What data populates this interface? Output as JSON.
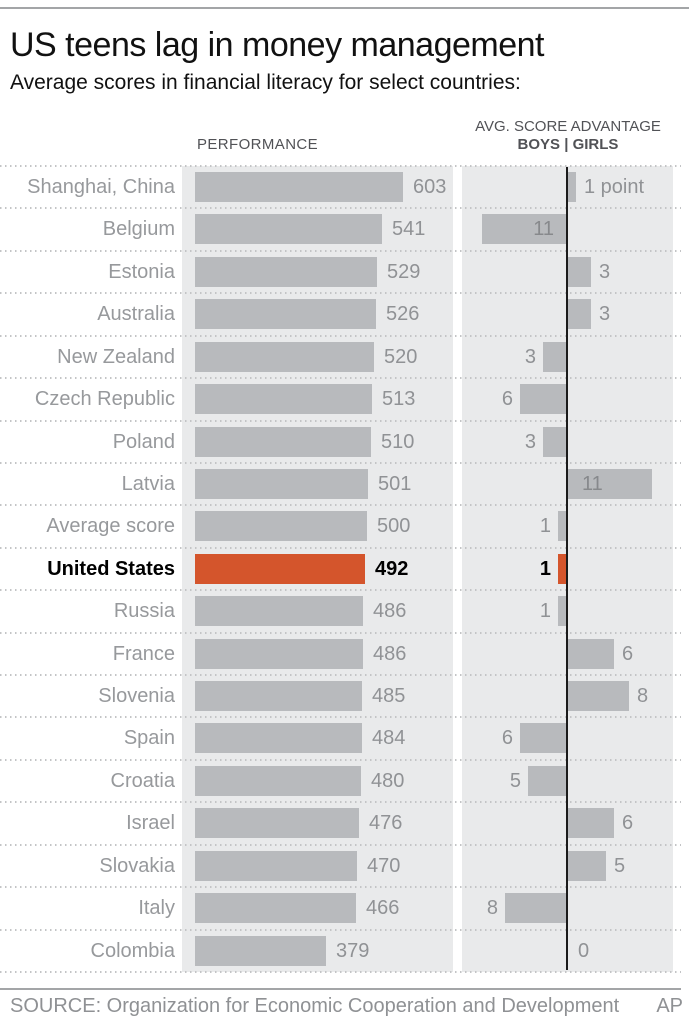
{
  "page": {
    "title": "US teens lag in money management",
    "subtitle": "Average scores in financial literacy for select countries:"
  },
  "headers": {
    "performance": "PERFORMANCE",
    "advantage_line1": "AVG. SCORE ADVANTAGE",
    "advantage_line2": "BOYS | GIRLS"
  },
  "footer": {
    "source": "SOURCE: Organization for Economic Cooperation and Development",
    "credit": "AP"
  },
  "colors": {
    "bar_gray": "#b8babd",
    "plot_background": "#e9eaeb",
    "highlight_red": "#d4552c",
    "label_gray": "#97999c",
    "value_gray": "#909295",
    "header_gray": "#515256",
    "source_gray": "#8f9194",
    "axis_black": "#1b1b1b",
    "rule_gray": "#a3a5a7",
    "divider_dot_gray": "#c3c4c6"
  },
  "chart_data": {
    "type": "bar",
    "title": "US teens lag in money management",
    "subtitle": "Average scores in financial literacy for select countries:",
    "panels": [
      {
        "name": "PERFORMANCE",
        "orientation": "horizontal-bars",
        "xlim": [
          0,
          610
        ],
        "grid": false,
        "value_labels": "outside-right"
      },
      {
        "name": "AVG. SCORE ADVANTAGE BOYS | GIRLS",
        "orientation": "horizontal-diverging",
        "boys_side": "left",
        "girls_side": "right",
        "xlim_points": [
          0,
          12
        ],
        "axis": "center-vertical-black"
      }
    ],
    "highlight_country": "United States",
    "highlight_color": "#d4552c",
    "rows": [
      {
        "country": "Shanghai, China",
        "score": 603,
        "advantage_side": "girls",
        "advantage_points": 1,
        "advantage_label": "1 point",
        "label_inside": false,
        "highlight": false
      },
      {
        "country": "Belgium",
        "score": 541,
        "advantage_side": "boys",
        "advantage_points": 11,
        "advantage_label": "11",
        "label_inside": true,
        "highlight": false
      },
      {
        "country": "Estonia",
        "score": 529,
        "advantage_side": "girls",
        "advantage_points": 3,
        "advantage_label": "3",
        "label_inside": false,
        "highlight": false
      },
      {
        "country": "Australia",
        "score": 526,
        "advantage_side": "girls",
        "advantage_points": 3,
        "advantage_label": "3",
        "label_inside": false,
        "highlight": false
      },
      {
        "country": "New Zealand",
        "score": 520,
        "advantage_side": "boys",
        "advantage_points": 3,
        "advantage_label": "3",
        "label_inside": false,
        "highlight": false
      },
      {
        "country": "Czech Republic",
        "score": 513,
        "advantage_side": "boys",
        "advantage_points": 6,
        "advantage_label": "6",
        "label_inside": false,
        "highlight": false
      },
      {
        "country": "Poland",
        "score": 510,
        "advantage_side": "boys",
        "advantage_points": 3,
        "advantage_label": "3",
        "label_inside": false,
        "highlight": false
      },
      {
        "country": "Latvia",
        "score": 501,
        "advantage_side": "girls",
        "advantage_points": 11,
        "advantage_label": "11",
        "label_inside": true,
        "highlight": false
      },
      {
        "country": "Average score",
        "score": 500,
        "advantage_side": "boys",
        "advantage_points": 1,
        "advantage_label": "1",
        "label_inside": false,
        "highlight": false
      },
      {
        "country": "United States",
        "score": 492,
        "advantage_side": "boys",
        "advantage_points": 1,
        "advantage_label": "1",
        "label_inside": false,
        "highlight": true
      },
      {
        "country": "Russia",
        "score": 486,
        "advantage_side": "boys",
        "advantage_points": 1,
        "advantage_label": "1",
        "label_inside": false,
        "highlight": false
      },
      {
        "country": "France",
        "score": 486,
        "advantage_side": "girls",
        "advantage_points": 6,
        "advantage_label": "6",
        "label_inside": false,
        "highlight": false
      },
      {
        "country": "Slovenia",
        "score": 485,
        "advantage_side": "girls",
        "advantage_points": 8,
        "advantage_label": "8",
        "label_inside": false,
        "highlight": false
      },
      {
        "country": "Spain",
        "score": 484,
        "advantage_side": "boys",
        "advantage_points": 6,
        "advantage_label": "6",
        "label_inside": false,
        "highlight": false
      },
      {
        "country": "Croatia",
        "score": 480,
        "advantage_side": "boys",
        "advantage_points": 5,
        "advantage_label": "5",
        "label_inside": false,
        "highlight": false
      },
      {
        "country": "Israel",
        "score": 476,
        "advantage_side": "girls",
        "advantage_points": 6,
        "advantage_label": "6",
        "label_inside": false,
        "highlight": false
      },
      {
        "country": "Slovakia",
        "score": 470,
        "advantage_side": "girls",
        "advantage_points": 5,
        "advantage_label": "5",
        "label_inside": false,
        "highlight": false
      },
      {
        "country": "Italy",
        "score": 466,
        "advantage_side": "boys",
        "advantage_points": 8,
        "advantage_label": "8",
        "label_inside": false,
        "highlight": false
      },
      {
        "country": "Colombia",
        "score": 379,
        "advantage_side": "none",
        "advantage_points": 0,
        "advantage_label": "0",
        "label_inside": false,
        "highlight": false
      }
    ]
  }
}
